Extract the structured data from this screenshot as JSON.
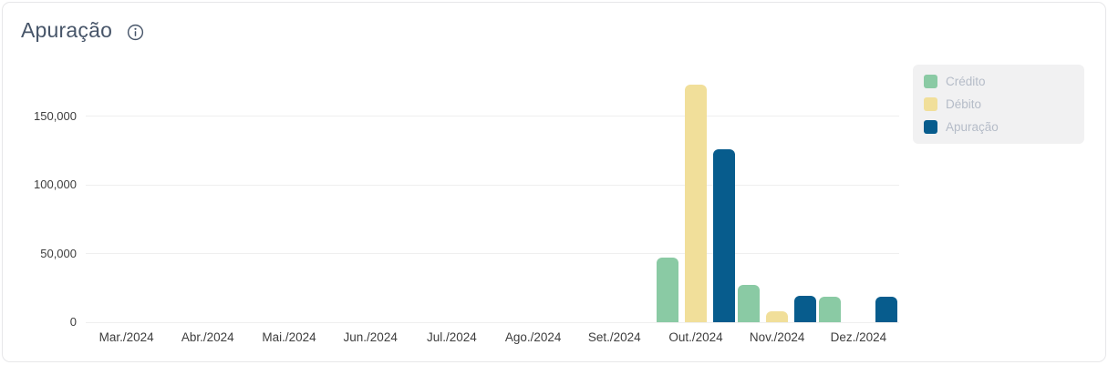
{
  "card": {
    "title": "Apuração"
  },
  "colors": {
    "credito": "#8acaa4",
    "debito": "#f1df9a",
    "apuracao": "#075c8d",
    "title_text": "#475569",
    "axis_text": "#3d3d3d",
    "gridline": "#efefef",
    "legend_bg": "#f1f1f2",
    "legend_text": "#b5bcc8",
    "card_border": "#e7e7e9"
  },
  "chart_data": {
    "type": "bar",
    "title": "Apuração",
    "xlabel": "",
    "ylabel": "",
    "categories": [
      "Mar./2024",
      "Abr./2024",
      "Mai./2024",
      "Jun./2024",
      "Jul./2024",
      "Ago./2024",
      "Set./2024",
      "Out./2024",
      "Nov./2024",
      "Dez./2024"
    ],
    "series": [
      {
        "name": "Crédito",
        "color": "#8acaa4",
        "values": [
          0,
          0,
          0,
          0,
          0,
          0,
          0,
          47000,
          27000,
          18500
        ]
      },
      {
        "name": "Débito",
        "color": "#f1df9a",
        "values": [
          0,
          0,
          0,
          0,
          0,
          0,
          0,
          173000,
          8000,
          0
        ]
      },
      {
        "name": "Apuração",
        "color": "#075c8d",
        "values": [
          0,
          0,
          0,
          0,
          0,
          0,
          0,
          126000,
          19000,
          18500
        ]
      }
    ],
    "ylim": [
      0,
      175000
    ],
    "yticks": [
      0,
      50000,
      100000,
      150000
    ],
    "ytick_labels": [
      "0",
      "50,000",
      "100,000",
      "150,000"
    ],
    "grid": true,
    "legend_position": "right"
  }
}
